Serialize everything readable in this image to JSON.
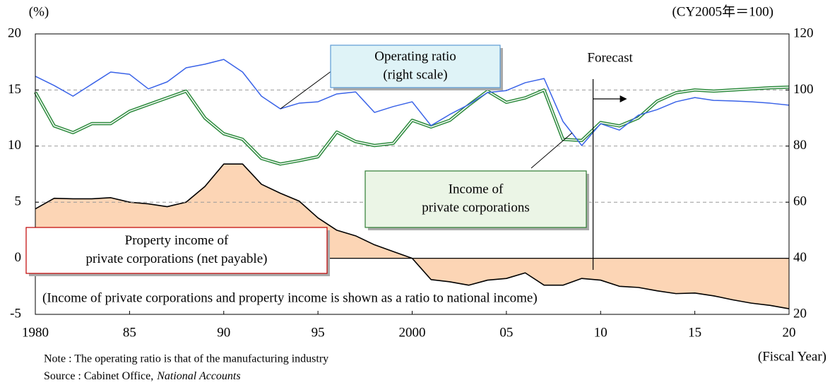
{
  "chart_data": {
    "type": "line",
    "y_unit": "(%)",
    "y2_unit": "(CY2005年＝100)",
    "x_label": "(Fiscal Year)",
    "x": [
      1980,
      1981,
      1982,
      1983,
      1984,
      1985,
      1986,
      1987,
      1988,
      1989,
      1990,
      1991,
      1992,
      1993,
      1994,
      1995,
      1996,
      1997,
      1998,
      1999,
      2000,
      2001,
      2002,
      2003,
      2004,
      2005,
      2006,
      2007,
      2008,
      2009,
      2010,
      2011,
      2012,
      2013,
      2014,
      2015,
      2016,
      2017,
      2018,
      2019,
      2020
    ],
    "xlim": [
      1980,
      2020
    ],
    "xticks": [
      1980,
      {
        "value": 1985,
        "label": "85"
      },
      {
        "value": 1990,
        "label": "90"
      },
      {
        "value": 1995,
        "label": "95"
      },
      2000,
      {
        "value": 2005,
        "label": "05"
      },
      {
        "value": 2010,
        "label": "10"
      },
      {
        "value": 2015,
        "label": "15"
      },
      {
        "value": 2020,
        "label": "20"
      }
    ],
    "ylim": [
      -5,
      20
    ],
    "yticks": [
      -5,
      0,
      5,
      10,
      15,
      20
    ],
    "y2lim": [
      20,
      120
    ],
    "y2ticks": [
      20,
      40,
      60,
      80,
      100,
      120
    ],
    "grid": true,
    "series": [
      {
        "name": "Property income of private corporations (net payable)",
        "style": "area",
        "color": "#000000",
        "fill": "#fcd5b5",
        "values": [
          4.4,
          5.35,
          5.3,
          5.3,
          5.4,
          5.0,
          4.85,
          4.6,
          5.0,
          6.4,
          8.4,
          8.4,
          6.6,
          5.8,
          5.1,
          3.6,
          2.5,
          2.0,
          1.2,
          0.6,
          0,
          -1.9,
          -2.1,
          -2.4,
          -1.95,
          -1.8,
          -1.3,
          -2.4,
          -2.4,
          -1.8,
          -1.95,
          -2.5,
          -2.6,
          -2.9,
          -3.15,
          -3.1,
          -3.35,
          -3.7,
          -4.0,
          -4.2,
          -4.5
        ]
      },
      {
        "name": "Income of private corporations",
        "style": "double",
        "color": "#2e8b3e",
        "values": [
          14.8,
          11.8,
          11.2,
          12.0,
          12.0,
          13.1,
          13.7,
          14.3,
          14.9,
          12.5,
          11.1,
          10.6,
          8.9,
          8.4,
          8.7,
          9.05,
          11.25,
          10.4,
          10.05,
          10.25,
          12.3,
          11.7,
          12.3,
          13.65,
          14.9,
          13.9,
          14.3,
          15.0,
          10.6,
          10.5,
          12.1,
          11.8,
          12.5,
          14.0,
          14.75,
          15.0,
          14.9,
          15.0,
          15.1,
          15.2,
          15.25
        ]
      },
      {
        "name": "Operating ratio (right scale)",
        "style": "line",
        "color": "#3a63e8",
        "axis": "y2",
        "values": [
          104.9,
          101.6,
          97.8,
          102.1,
          106.4,
          105.6,
          100.4,
          102.9,
          107.9,
          109.2,
          110.9,
          106.4,
          97.8,
          93.3,
          95.3,
          95.8,
          98.6,
          99.3,
          92.0,
          94.1,
          95.8,
          87.3,
          91.3,
          94.8,
          99.1,
          99.8,
          102.6,
          104.1,
          88.8,
          80.2,
          88.0,
          85.7,
          91.0,
          93.0,
          95.8,
          97.3,
          96.3,
          96.1,
          95.8,
          95.3,
          94.6
        ]
      }
    ],
    "annotations": [
      {
        "lines": [
          "Operating ratio",
          "(right scale)"
        ]
      },
      {
        "lines": [
          "Income of",
          "private corporations"
        ]
      },
      {
        "lines": [
          "Property income of",
          "private corporations (net payable)"
        ]
      }
    ],
    "forecast": {
      "label": "Forecast",
      "x": 2009.6
    },
    "ratio_note": "(Income of private corporations and property income is shown as a ratio to national income)",
    "note": "Note : The operating ratio is that of the manufacturing industry",
    "source": {
      "prefix": "Source : Cabinet Office,",
      "title": "National Accounts"
    }
  }
}
